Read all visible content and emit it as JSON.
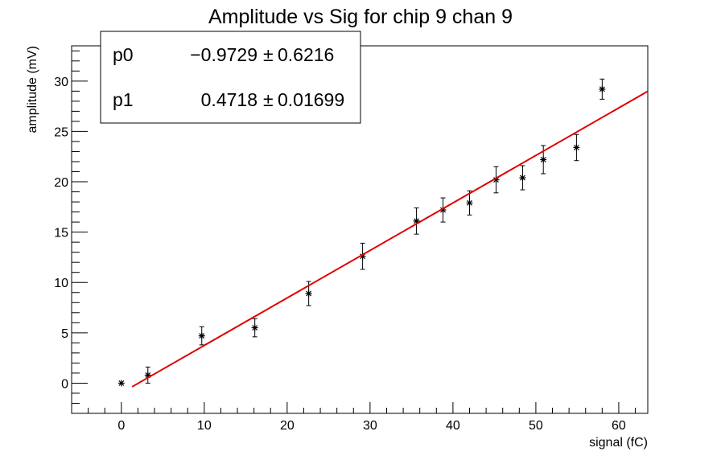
{
  "chart_data": {
    "type": "scatter",
    "title": "Amplitude vs Sig for chip 9 chan 9",
    "xlabel": "signal (fC)",
    "ylabel": "amplitude (mV)",
    "xlim": [
      -6,
      63.5
    ],
    "ylim": [
      -3,
      33.5
    ],
    "xticks": [
      0,
      10,
      20,
      30,
      40,
      50,
      60
    ],
    "yticks": [
      0,
      5,
      10,
      15,
      20,
      25,
      30
    ],
    "grid": false,
    "series": [
      {
        "points": [
          {
            "x": 0.0,
            "y": 0.0,
            "err": 0.0
          },
          {
            "x": 3.2,
            "y": 0.8,
            "err": 0.8
          },
          {
            "x": 9.7,
            "y": 4.7,
            "err": 0.9
          },
          {
            "x": 16.1,
            "y": 5.5,
            "err": 0.9
          },
          {
            "x": 22.6,
            "y": 8.9,
            "err": 1.2
          },
          {
            "x": 29.1,
            "y": 12.6,
            "err": 1.3
          },
          {
            "x": 35.6,
            "y": 16.1,
            "err": 1.3
          },
          {
            "x": 38.8,
            "y": 17.2,
            "err": 1.2
          },
          {
            "x": 42.0,
            "y": 17.9,
            "err": 1.2
          },
          {
            "x": 45.2,
            "y": 20.2,
            "err": 1.3
          },
          {
            "x": 48.4,
            "y": 20.4,
            "err": 1.2
          },
          {
            "x": 50.9,
            "y": 22.2,
            "err": 1.4
          },
          {
            "x": 54.9,
            "y": 23.4,
            "err": 1.3
          },
          {
            "x": 58.0,
            "y": 29.2,
            "err": 1.0
          }
        ]
      }
    ],
    "fit": {
      "x_start": 1.3,
      "x_end": 63.5,
      "color": "#e00000",
      "params": [
        {
          "label": "p0",
          "value": "−0.9729",
          "pm": "±",
          "error": "0.6216",
          "num": -0.9729
        },
        {
          "label": "p1",
          "value": "0.4718",
          "pm": "±",
          "error": "0.01699",
          "num": 0.4718
        }
      ]
    },
    "stats_box_position": "top-left"
  }
}
